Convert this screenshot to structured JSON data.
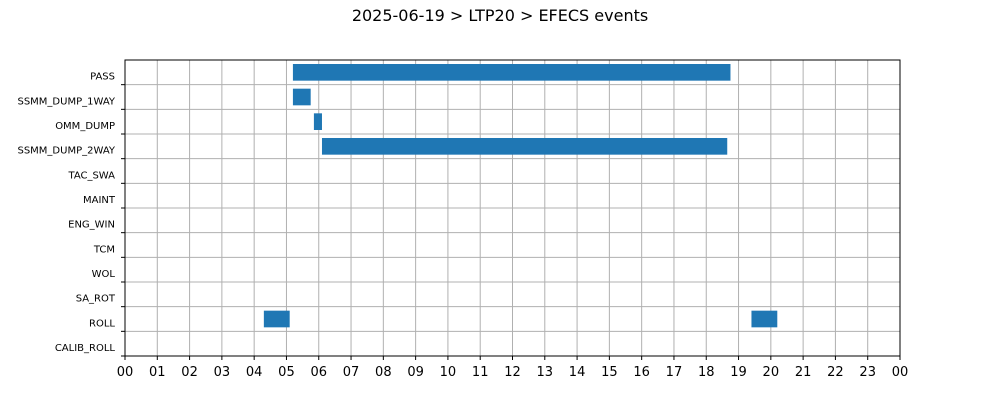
{
  "title": "2025-06-19 > LTP20 > EFECS events",
  "chart_data": {
    "type": "bar",
    "orientation": "horizontal-timeline",
    "title": "2025-06-19 > LTP20 > EFECS events",
    "xlabel": "",
    "ylabel": "",
    "xlim": [
      0,
      24
    ],
    "x_unit": "hour",
    "x_tick_labels": [
      "00",
      "01",
      "02",
      "03",
      "04",
      "05",
      "06",
      "07",
      "08",
      "09",
      "10",
      "11",
      "12",
      "13",
      "14",
      "15",
      "16",
      "17",
      "18",
      "19",
      "20",
      "21",
      "22",
      "23",
      "00"
    ],
    "categories": [
      "PASS",
      "SSMM_DUMP_1WAY",
      "OMM_DUMP",
      "SSMM_DUMP_2WAY",
      "TAC_SWA",
      "MAINT",
      "ENG_WIN",
      "TCM",
      "WOL",
      "SA_ROT",
      "ROLL",
      "CALIB_ROLL"
    ],
    "grid": true,
    "bar_color": "#1f77b4",
    "events": [
      {
        "category": "PASS",
        "start": 5.2,
        "end": 18.75
      },
      {
        "category": "SSMM_DUMP_1WAY",
        "start": 5.2,
        "end": 5.75
      },
      {
        "category": "OMM_DUMP",
        "start": 5.85,
        "end": 6.1
      },
      {
        "category": "SSMM_DUMP_2WAY",
        "start": 6.1,
        "end": 18.65
      },
      {
        "category": "ROLL",
        "start": 4.3,
        "end": 5.1
      },
      {
        "category": "ROLL",
        "start": 19.4,
        "end": 20.2
      }
    ]
  }
}
